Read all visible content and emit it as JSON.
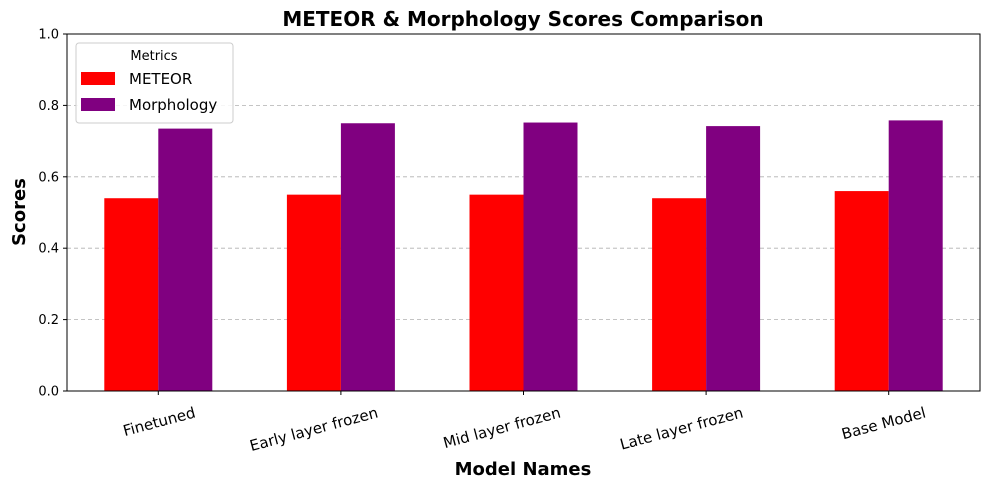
{
  "chart_data": {
    "type": "bar",
    "title": "METEOR & Morphology Scores Comparison",
    "xlabel": "Model Names",
    "ylabel": "Scores",
    "categories": [
      "Finetuned",
      "Early layer frozen",
      "Mid layer frozen",
      "Late layer frozen",
      "Base Model"
    ],
    "series": [
      {
        "name": "METEOR",
        "color": "#ff0000",
        "values": [
          0.54,
          0.55,
          0.55,
          0.54,
          0.56
        ]
      },
      {
        "name": "Morphology",
        "color": "#800080",
        "values": [
          0.735,
          0.75,
          0.752,
          0.742,
          0.758
        ]
      }
    ],
    "ylim": [
      0,
      1.0
    ],
    "yticks": [
      "0.0",
      "0.2",
      "0.4",
      "0.6",
      "0.8",
      "1.0"
    ],
    "grid": "y-axis dashed",
    "legend": {
      "title": "Metrics",
      "position": "top-left"
    }
  }
}
